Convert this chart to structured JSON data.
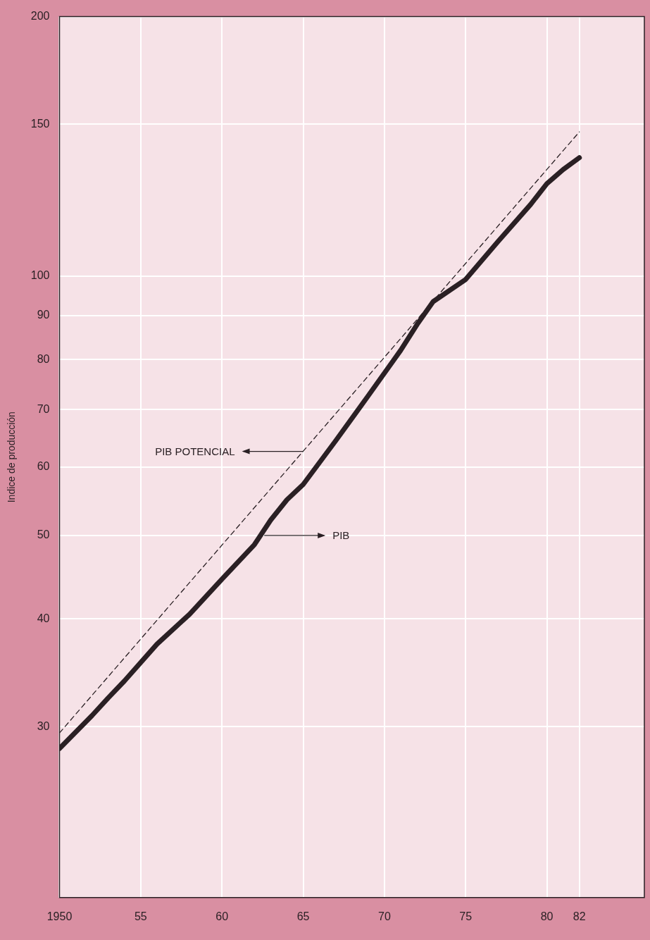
{
  "chart_data": {
    "type": "line",
    "ylabel": "Indice de producción",
    "log": "y",
    "grid": true,
    "legend": false,
    "marker": "none",
    "xlim": [
      1950,
      1986
    ],
    "xticks": [
      {
        "value": 1950,
        "label": "1950"
      },
      {
        "value": 1955,
        "label": "55"
      },
      {
        "value": 1960,
        "label": "60"
      },
      {
        "value": 1965,
        "label": "65"
      },
      {
        "value": 1970,
        "label": "70"
      },
      {
        "value": 1975,
        "label": "75"
      },
      {
        "value": 1980,
        "label": "80"
      },
      {
        "value": 1982,
        "label": "82"
      }
    ],
    "ylim": [
      19,
      200
    ],
    "yticks": [
      30,
      40,
      50,
      60,
      70,
      80,
      90,
      100,
      150,
      200
    ],
    "series": [
      {
        "color": "#2a2024",
        "line_style": "solid",
        "x": [
          1950,
          1952,
          1953,
          1954,
          1956,
          1958,
          1960,
          1962,
          1963,
          1964,
          1965,
          1967,
          1969,
          1971,
          1972,
          1973,
          1975,
          1977,
          1979,
          1980,
          1981,
          1982
        ],
        "values": [
          28.3,
          30.9,
          32.4,
          33.9,
          37.4,
          40.5,
          44.5,
          48.8,
          52.1,
          55,
          57.3,
          64.4,
          72.6,
          82,
          87.8,
          93.4,
          99.1,
          109.7,
          121.1,
          128,
          132.9,
          137.2
        ]
      },
      {
        "color": "#2a2024",
        "line_style": "dashed",
        "x": [
          1950,
          1982
        ],
        "values": [
          29.5,
          147
        ]
      }
    ],
    "annotations": [
      {
        "text": "PIB POTENCIAL",
        "x": 1965,
        "y": 62.6
      },
      {
        "text": "PIB",
        "x": 1962.6,
        "y": 50
      }
    ]
  }
}
